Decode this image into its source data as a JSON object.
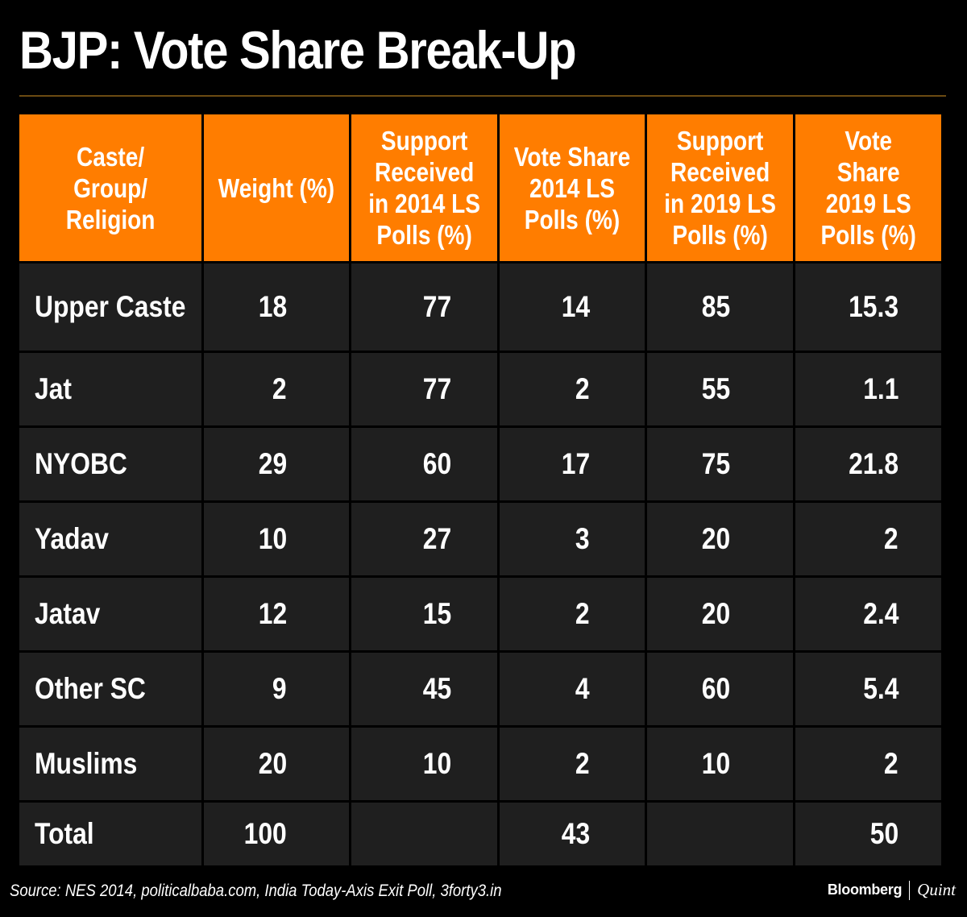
{
  "title": "BJP: Vote Share Break-Up",
  "colors": {
    "background": "#000000",
    "header_bg": "#ff7d00",
    "cell_bg": "#1f1f1f",
    "text": "#ffffff",
    "rule": "#6b4a12"
  },
  "chart_data": {
    "type": "table",
    "title": "BJP: Vote Share Break-Up",
    "columns": [
      "Caste/\nGroup/\nReligion",
      "Weight (%)",
      "Support\nReceived\nin 2014 LS\nPolls (%)",
      "Vote Share\n2014 LS\nPolls (%)",
      "Support\nReceived\nin 2019 LS\nPolls (%)",
      "Vote\nShare\n2019 LS\nPolls (%)"
    ],
    "rows": [
      [
        "Upper Caste",
        "18",
        "77",
        "14",
        "85",
        "15.3"
      ],
      [
        "Jat",
        "2",
        "77",
        "2",
        "55",
        "1.1"
      ],
      [
        "NYOBC",
        "29",
        "60",
        "17",
        "75",
        "21.8"
      ],
      [
        "Yadav",
        "10",
        "27",
        "3",
        "20",
        "2"
      ],
      [
        "Jatav",
        "12",
        "15",
        "2",
        "20",
        "2.4"
      ],
      [
        "Other SC",
        "9",
        "45",
        "4",
        "60",
        "5.4"
      ],
      [
        "Muslims",
        "20",
        "10",
        "2",
        "10",
        "2"
      ]
    ],
    "total": [
      "Total",
      "100",
      "",
      "43",
      "",
      "50"
    ]
  },
  "footer": {
    "source": "Source: NES 2014, politicalbaba.com, India Today-Axis Exit Poll, 3forty3.in",
    "brand_primary": "Bloomberg",
    "brand_secondary": "Quint"
  }
}
